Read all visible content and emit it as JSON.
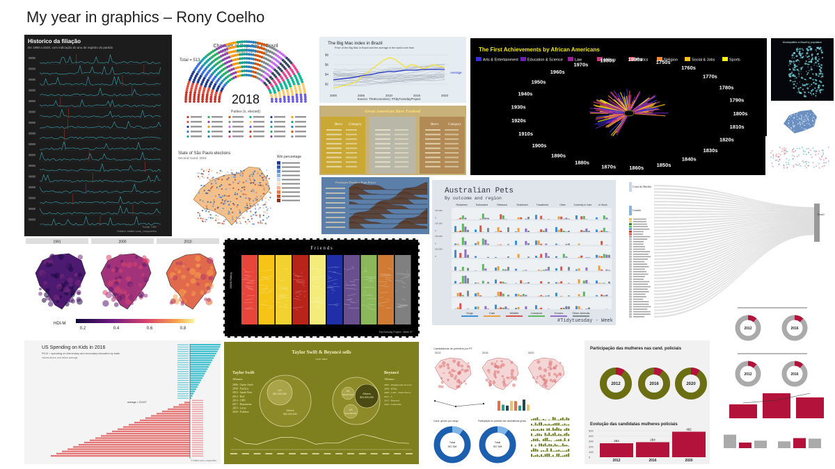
{
  "page": {
    "title": "My year in graphics – Rony Coelho"
  },
  "panels": {
    "filiacao": {
      "title": "Historico da filiação",
      "subtitle": "De 1990 a 2020, com indicação do ano de registro do partido",
      "source": "Fonte: TSE",
      "credit": "Gráfico: twitter.com/_ronycoelho"
    },
    "chamber": {
      "title": "Chamber of Deputies in Brazil",
      "subtitle": "Number of deputies elected by party",
      "total": "Total = 513",
      "year": "2018",
      "legend_title": "Parties (n. elected)"
    },
    "bigmac": {
      "title": "The Big Mac index in Brazil",
      "subtitle": "Price of the Big Mac in Brazil and the average in the world over time",
      "avg_label": "Average",
      "source": "Source: TheEconomist | #TidyTuesdayProject",
      "y_ticks": [
        "$8",
        "$6",
        "$4",
        "$2"
      ],
      "x_ticks": [
        "2000",
        "2005",
        "2010",
        "2015",
        "2020"
      ]
    },
    "beer": {
      "title": "Great American Beer Festival",
      "col_labels": [
        "Beers",
        "Category",
        "Beers",
        "Category"
      ]
    },
    "african": {
      "title": "The First Achievements by African Americans",
      "legend": [
        {
          "label": "Arts & Entertainment",
          "color": "#3a2fd6"
        },
        {
          "label": "Education & Science",
          "color": "#6a1fb5"
        },
        {
          "label": "Law",
          "color": "#9c1f9c"
        },
        {
          "label": "Military",
          "color": "#c23d7d"
        },
        {
          "label": "Politics",
          "color": "#e04f5e"
        },
        {
          "label": "Religion",
          "color": "#f2883a"
        },
        {
          "label": "Social & Jobs",
          "color": "#f7c21d"
        },
        {
          "label": "Sports",
          "color": "#f4f41a"
        }
      ],
      "decades": [
        "1750s",
        "1760s",
        "1770s",
        "1780s",
        "1790s",
        "1800s",
        "1810s",
        "1820s",
        "1830s",
        "1840s",
        "1850s",
        "1860s",
        "1870s",
        "1880s",
        "1890s",
        "1900s",
        "1910s",
        "1920s",
        "1930s",
        "1940s",
        "1950s",
        "1960s",
        "1970s",
        "1980s",
        "1990s"
      ]
    },
    "municipalities": {
      "title": "Municipalities in Brazil by population"
    },
    "sp": {
      "title": "State of São Paulo elections",
      "subtitle": "Second round, 2018",
      "legend_title": "Win percentage"
    },
    "ridges": {
      "title": "Penelopes Drinking Pops Prices"
    },
    "pets": {
      "title": "Australian Pets",
      "subtitle": "By outcome and region",
      "footer": "#Tidytuesday - Week 30",
      "outcomes": [
        "Reclaimed",
        "Euthanized",
        "Released",
        "Reclaimed",
        "Transferred",
        "Other",
        "Currently In Care",
        "In Stock"
      ],
      "animals": [
        "Dogs",
        "Cats",
        "Wildlife",
        "Livestock",
        "Horses",
        "Other Animals"
      ],
      "animal_colors": [
        "#3b8fd9",
        "#e8a13a",
        "#d9534f",
        "#5cb85c",
        "#8e6fc2",
        "#7f8c8d"
      ],
      "y_ticks": [
        "150,000",
        "100,000",
        "50,000",
        "0"
      ]
    },
    "sankey": {
      "top_label": "Costa do Marfim",
      "bottom_label": "Canadá",
      "right_label": "Brasil"
    },
    "hdi": {
      "years": [
        "1991",
        "2000",
        "2010"
      ],
      "legend_label": "HDI-M",
      "legend_ticks": [
        "0.2",
        "0.4",
        "0.6",
        "0.8"
      ]
    },
    "friends": {
      "title": "F r i e n d s",
      "ylabel": "IMDB Rating",
      "footer": "TidyTuesday Project - Week 37"
    },
    "spending": {
      "title": "US Spending on Kids in 2016",
      "subtitle": "PK12 = spending on elementary and secondary education by state",
      "note": "Values above and below average",
      "avg_label": "average = 23.44T",
      "note_right": "© twitter.com/_ronycoelho"
    },
    "taylor": {
      "title": "Taylor Swift & Beyoncé sells",
      "subtitle": "over time",
      "left_name": "Taylor Swift",
      "right_name": "Beyoncé",
      "albums_label": "Albums:",
      "left_albums": [
        "2006 - Taylor Swift",
        "2008 - Fearless",
        "2010 - Speak Now",
        "2012 - Red",
        "2014 - 1989",
        "2017 - Reputation",
        "2019 - Lover",
        "2020 - Folklore"
      ],
      "right_albums": [
        "2003 - Dangerously In Love",
        "2006 - B'Day",
        "2008 - I Am... Sasha Fierce",
        "2011 - 4",
        "2013 - Beyoncé",
        "2016 - Lemonade"
      ],
      "left_us": "US",
      "left_us_val": "$31,000,000",
      "left_others": "Others",
      "left_others_val": "$42,000,000",
      "right_us": "US",
      "right_us_val": "$9,257,000",
      "right_others": "Others",
      "right_others_val": "$24,000,000",
      "right_us2": "US",
      "right_us2_val": "$14,236,000"
    },
    "candidaturas": {
      "title": "Candidaturas de prefeitos por PT",
      "years": [
        "2012",
        "2016",
        "2020"
      ],
      "label_a": "Cand. gerais por cargo",
      "label_b": "Participação de policiais nas candidaturas gerais",
      "total_a": "Total",
      "total_a_val": "557.398",
      "total_b": "Total",
      "total_b_val": "557.398"
    },
    "mulheres": {
      "title": "Participação das mulheres nas cand. policiais",
      "years": [
        "2012",
        "2016",
        "2020"
      ],
      "evolution_title": "Evolução das candidatas mulheres policiais",
      "bar_values": [
        "264",
        "284",
        "482"
      ],
      "y_ticks": [
        "500",
        "400",
        "300",
        "200",
        "100",
        "0"
      ]
    },
    "right_donuts": {
      "years": [
        "2012",
        "2016"
      ]
    }
  }
}
